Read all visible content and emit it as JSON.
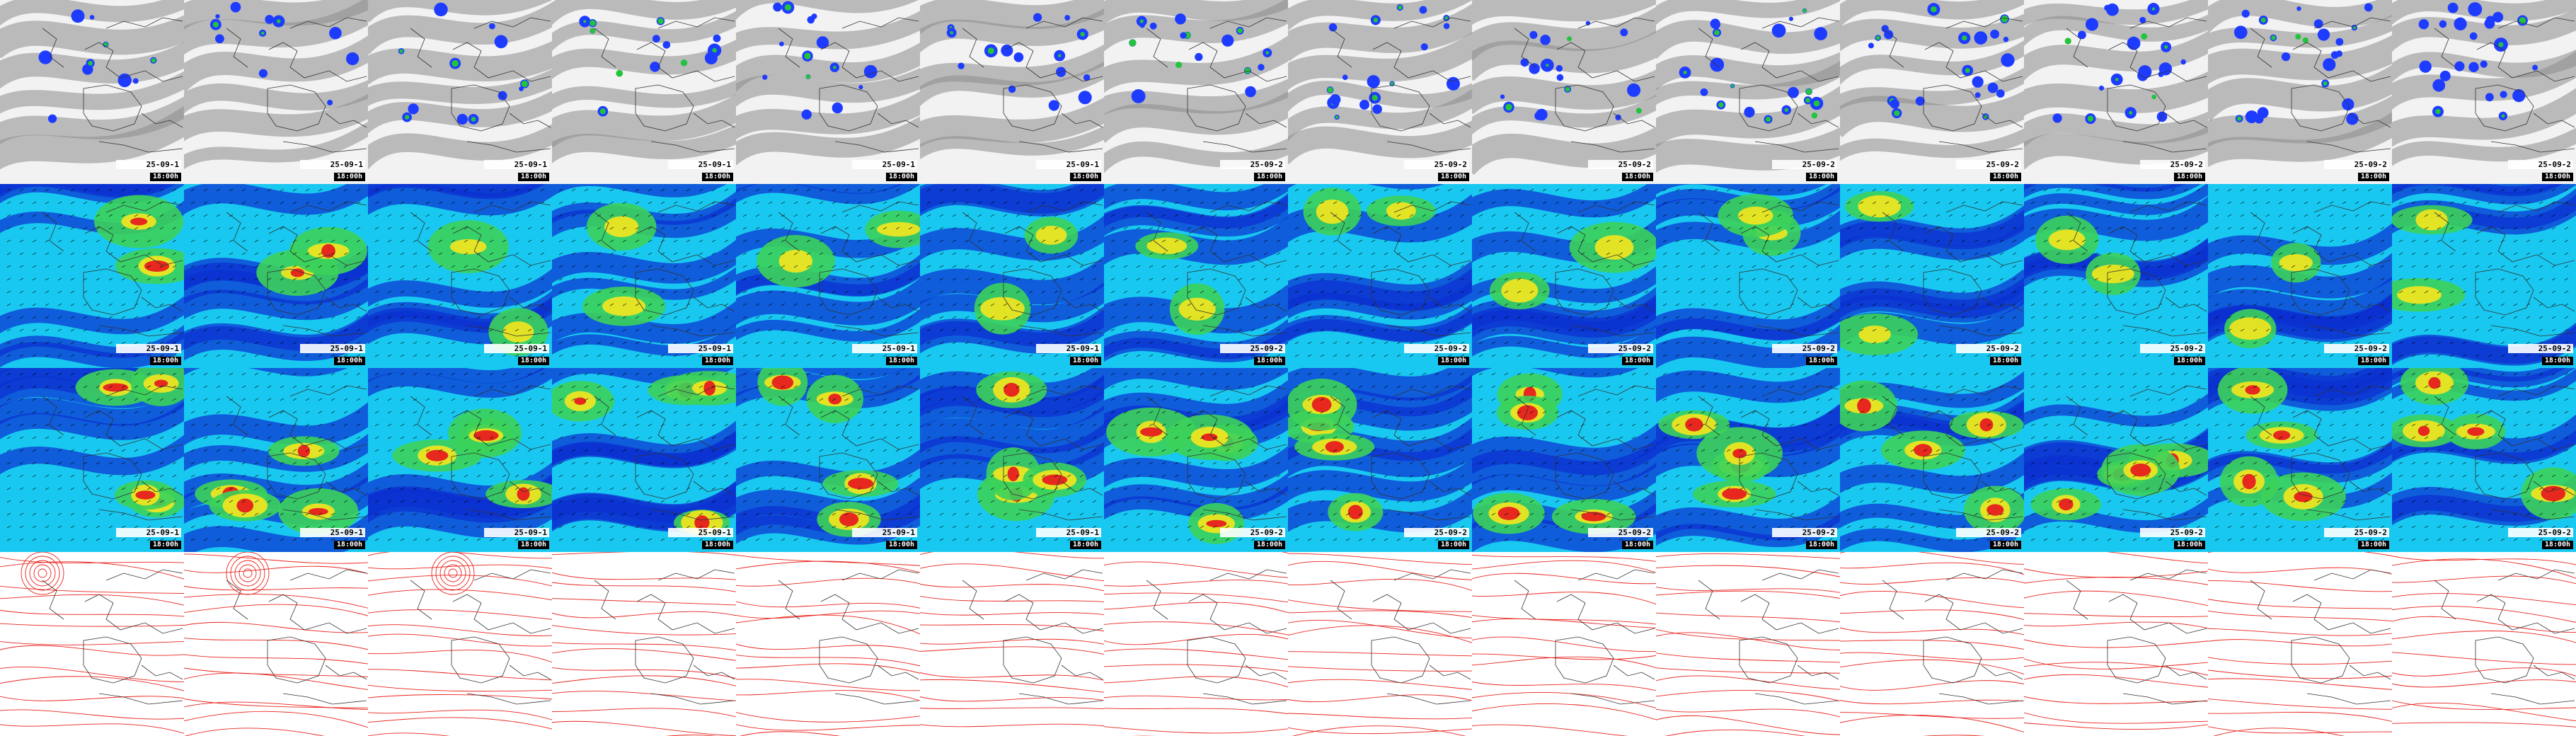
{
  "rows": [
    {
      "product": "cloud-cover",
      "stamp_date": "25-09-1",
      "stamp_run": "18:00h"
    },
    {
      "product": "wind-low-level",
      "stamp_date": "25-09-1",
      "stamp_run": "18:00h"
    },
    {
      "product": "wind-upper-level",
      "stamp_date": "25-09-1",
      "stamp_run": "18:00h"
    },
    {
      "product": "pressure-isobars",
      "stamp_date": "",
      "stamp_run": ""
    }
  ],
  "columns": 14,
  "stamps_by_column": [
    "25-09-1",
    "25-09-1",
    "25-09-1",
    "25-09-1",
    "25-09-1",
    "25-09-1",
    "25-09-2",
    "25-09-2",
    "25-09-2",
    "25-09-2",
    "25-09-2",
    "25-09-2",
    "25-09-2",
    "25-09-2"
  ],
  "stamp_run": "18:00h",
  "colors": {
    "cloud_bg": "#f2f2f2",
    "cloud_grey": "#8c8c8c",
    "precip_blue": "#1e3cff",
    "precip_green": "#22c43c",
    "wind_blue": "#0b2fd0",
    "wind_cyan": "#19c8f0",
    "wind_green": "#3cd25a",
    "wind_yellow": "#f5e61e",
    "wind_red": "#e6281e",
    "coast": "#333333",
    "isobar": "#e8231e"
  }
}
